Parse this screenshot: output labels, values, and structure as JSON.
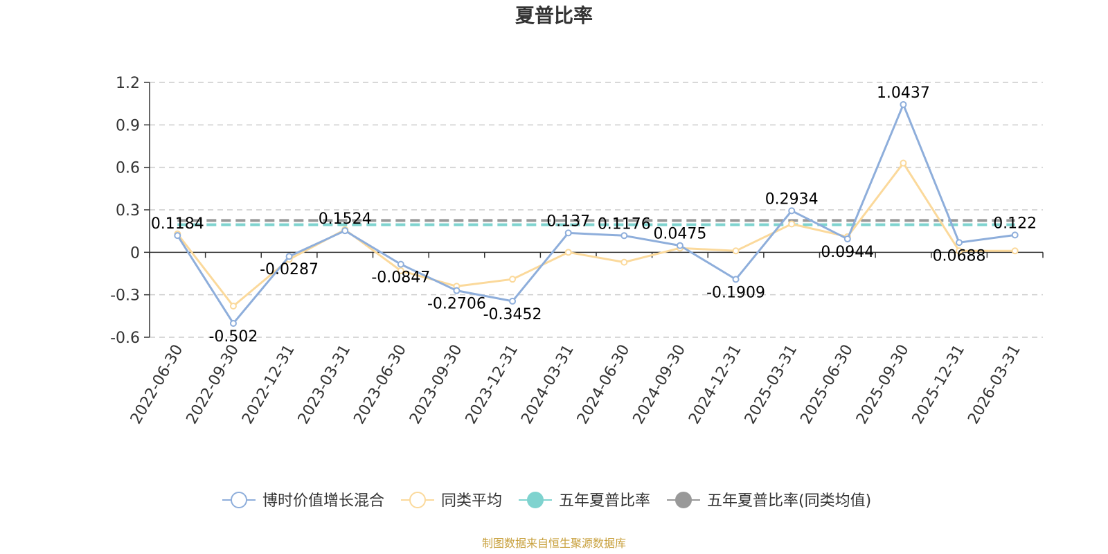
{
  "chart_data": {
    "type": "line",
    "title": "夏普比率",
    "categories": [
      "2022-06-30",
      "2022-09-30",
      "2022-12-31",
      "2023-03-31",
      "2023-06-30",
      "2023-09-30",
      "2023-12-31",
      "2024-03-31",
      "2024-06-30",
      "2024-09-30",
      "2024-12-31",
      "2025-03-31",
      "2025-06-30",
      "2025-09-30",
      "2025-12-31",
      "2026-03-31"
    ],
    "ylim": [
      -0.6,
      1.2
    ],
    "yticks": [
      "1.2",
      "0.9",
      "0.6",
      "0.3",
      "0",
      "-0.3",
      "-0.6"
    ],
    "grid": true,
    "legend_position": "bottom",
    "series": [
      {
        "name": "博时价值增长混合",
        "color": "#8eaedb",
        "values": [
          0.1184,
          -0.502,
          -0.0287,
          0.1524,
          -0.0847,
          -0.2706,
          -0.3452,
          0.137,
          0.1176,
          0.0475,
          -0.1909,
          0.2934,
          0.0944,
          1.0437,
          0.0688,
          0.122
        ],
        "labels": [
          "0.1184",
          "-0.502",
          "-0.0287",
          "0.1524",
          "-0.0847",
          "-0.2706",
          "-0.3452",
          "0.137",
          "0.1176",
          "0.0475",
          "-0.1909",
          "0.2934",
          "0.0944",
          "1.0437",
          "0.0688",
          "0.122"
        ]
      },
      {
        "name": "同类平均",
        "color": "#fbd99b",
        "values": [
          0.13,
          -0.38,
          -0.05,
          0.16,
          -0.13,
          -0.24,
          -0.19,
          0.0,
          -0.07,
          0.03,
          0.01,
          0.2,
          0.11,
          0.63,
          0.01,
          0.01
        ]
      },
      {
        "name": "五年夏普比率",
        "color": "#7fd3cf",
        "constant": 0.195
      },
      {
        "name": "五年夏普比率(同类均值)",
        "color": "#999999",
        "constant": 0.225
      }
    ],
    "source": "制图数据来自恒生聚源数据库"
  }
}
